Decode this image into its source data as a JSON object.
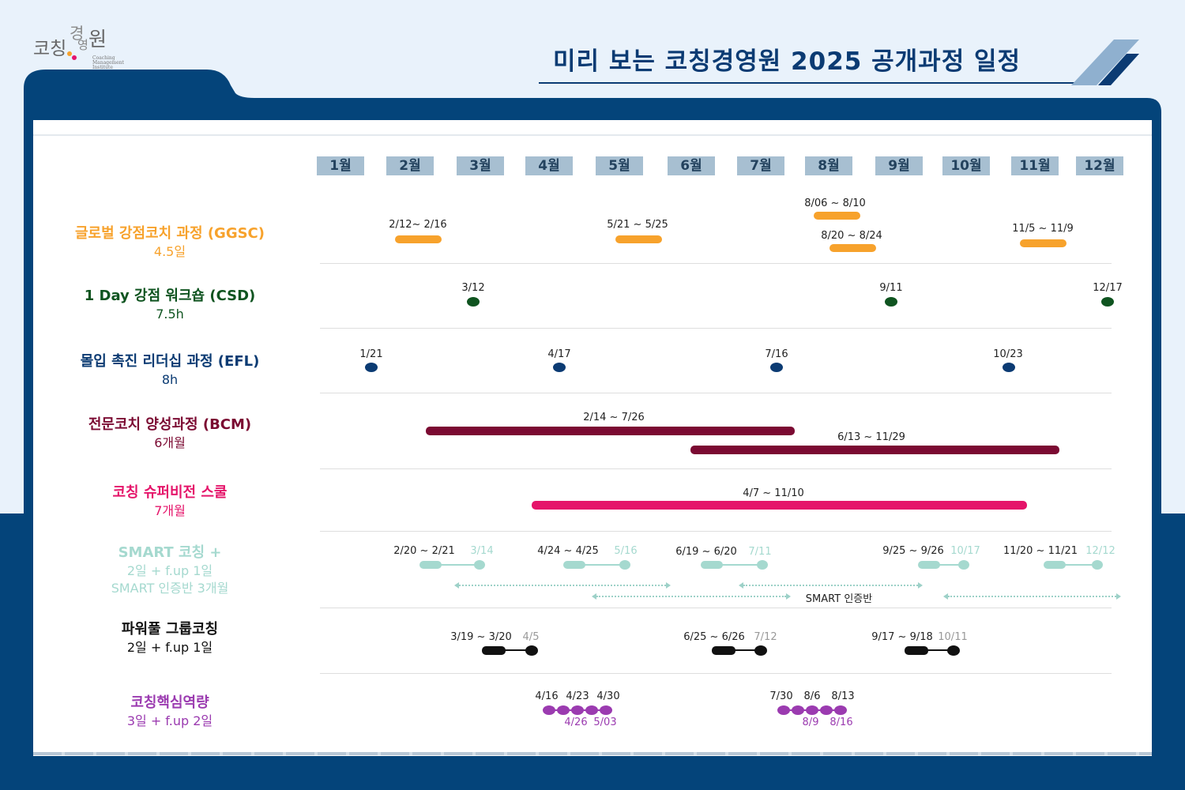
{
  "logo": {
    "ko_1": "코칭",
    "ko_2": "경",
    "ko_3": "영",
    "ko_4": "원",
    "en_1": "Coaching",
    "en_2": "Management",
    "en_3": "Institute"
  },
  "title": "미리 보는 코칭경영원 2025 공개과정 일정",
  "months": [
    "1월",
    "2월",
    "3월",
    "4월",
    "5월",
    "6월",
    "7월",
    "8월",
    "9월",
    "10월",
    "11월",
    "12월"
  ],
  "rows": {
    "ggsc": {
      "name": "글로벌 강점코치 과정 (GGSC)",
      "duration": "4.5일",
      "color": "#f7a22c",
      "dates": [
        "2/12~ 2/16",
        "5/21 ~ 5/25",
        "8/06 ~ 8/10",
        "8/20 ~ 8/24",
        "11/5 ~ 11/9"
      ]
    },
    "csd": {
      "name": "1 Day 강점 워크숍 (CSD)",
      "duration": "7.5h",
      "color": "#0f5420",
      "dates": [
        "3/12",
        "9/11",
        "12/17"
      ]
    },
    "efl": {
      "name": "몰입 촉진 리더십 과정 (EFL)",
      "duration": "8h",
      "color": "#0b3b73",
      "dates": [
        "1/21",
        "4/17",
        "7/16",
        "10/23"
      ]
    },
    "bcm": {
      "name": "전문코치 양성과정 (BCM)",
      "duration": "6개월",
      "color": "#7b0a32",
      "dates": [
        "2/14 ~ 7/26",
        "6/13 ~ 11/29"
      ]
    },
    "super": {
      "name": "코칭 슈퍼비전 스쿨",
      "duration": "7개월",
      "color": "#e5146a",
      "dates": [
        "4/7 ~ 11/10"
      ]
    },
    "smart": {
      "name": "SMART 코칭 +",
      "duration": "2일 + f.up 1일",
      "extra": "SMART 인증반 3개월",
      "color": "#a5d9cf",
      "dates": [
        "2/20 ~ 2/21",
        "4/24 ~ 4/25",
        "6/19 ~ 6/20",
        "9/25 ~ 9/26",
        "11/20 ~ 11/21"
      ],
      "followups": [
        "3/14",
        "5/16",
        "7/11",
        "10/17",
        "12/12"
      ],
      "cert_label": "SMART 인증반"
    },
    "power": {
      "name": "파워풀 그룹코칭",
      "duration": "2일 + f.up 1일",
      "color": "#111111",
      "dates": [
        "3/19 ~ 3/20",
        "6/25 ~ 6/26",
        "9/17 ~ 9/18"
      ],
      "followups": [
        "4/5",
        "7/12",
        "10/11"
      ]
    },
    "core": {
      "name": "코칭핵심역량",
      "duration": "3일 + f.up 2일",
      "color": "#9b3bb0",
      "dates_top": [
        "4/16",
        "4/23",
        "4/30",
        "7/30",
        "8/6",
        "8/13"
      ],
      "dates_bottom": [
        "4/26",
        "5/03",
        "8/9",
        "8/16"
      ]
    }
  }
}
